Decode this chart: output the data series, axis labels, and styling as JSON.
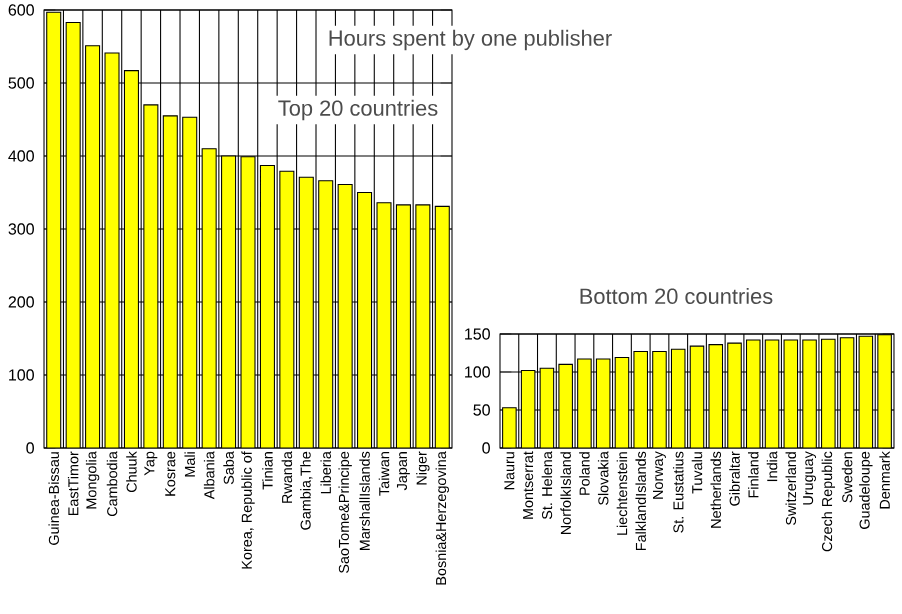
{
  "chart_data": [
    {
      "type": "bar",
      "title": "Hours spent by one publisher",
      "subtitle": "Top 20 countries",
      "categories": [
        "Guinea-Bissau",
        "EastTimor",
        "Mongolia",
        "Cambodia",
        "Chuuk",
        "Yap",
        "Kosrae",
        "Mali",
        "Albania",
        "Saba",
        "Korea, Republic of",
        "Tinian",
        "Rwanda",
        "Gambia,The",
        "Liberia",
        "SaoTome&Principe",
        "MarshallIslands",
        "Taiwan",
        "Japan",
        "Niger",
        "Bosnia&Herzegovina"
      ],
      "values": [
        597,
        583,
        551,
        541,
        517,
        470,
        455,
        453,
        410,
        400,
        399,
        387,
        379,
        371,
        366,
        361,
        350,
        336,
        333,
        333,
        331
      ],
      "color": "#ffff00",
      "ylim": [
        0,
        600
      ],
      "yticks": [
        0,
        100,
        200,
        300,
        400,
        500,
        600
      ],
      "grid": true
    },
    {
      "type": "bar",
      "title": "Bottom 20 countries",
      "categories": [
        "Nauru",
        "Montserrat",
        "St. Helena",
        "NorfolkIsland",
        "Poland",
        "Slovakia",
        "Liechtenstein",
        "FalklandIslands",
        "Norway",
        "St. Eustatius",
        "Tuvalu",
        "Netherlands",
        "Gibraltar",
        "Finland",
        "India",
        "Switzerland",
        "Uruguay",
        "Czech Republic",
        "Sweden",
        "Guadeloupe",
        "Denmark"
      ],
      "values": [
        53,
        102,
        105,
        110,
        117,
        117,
        119,
        127,
        127,
        130,
        134,
        136,
        138,
        142,
        142,
        142,
        142,
        143,
        145,
        147,
        149
      ],
      "color": "#ffff00",
      "ylim": [
        0,
        150
      ],
      "yticks": [
        0,
        50,
        100,
        150
      ],
      "grid": true
    }
  ]
}
